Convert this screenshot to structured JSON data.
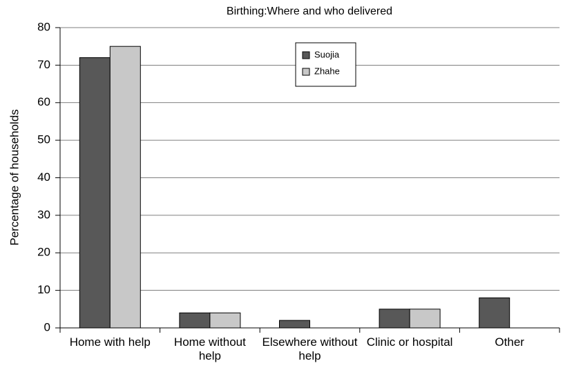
{
  "chart_data": {
    "type": "bar",
    "title": "Birthing:Where and who delivered",
    "y_label": "Percentage of households",
    "categories": [
      "Home with help",
      "Home without help",
      "Elsewhere without help",
      "Clinic or hospital",
      "Other"
    ],
    "series": [
      {
        "name": "Suojia",
        "color": "#585858",
        "values": [
          72,
          4,
          2,
          5,
          8
        ]
      },
      {
        "name": "Zhahe",
        "color": "#c8c8c8",
        "values": [
          75,
          4,
          0,
          5,
          0
        ]
      }
    ],
    "ylim": [
      0,
      80
    ],
    "yticks": [
      0,
      10,
      20,
      30,
      40,
      50,
      60,
      70,
      80
    ],
    "grid": true,
    "legend": "top-center"
  }
}
